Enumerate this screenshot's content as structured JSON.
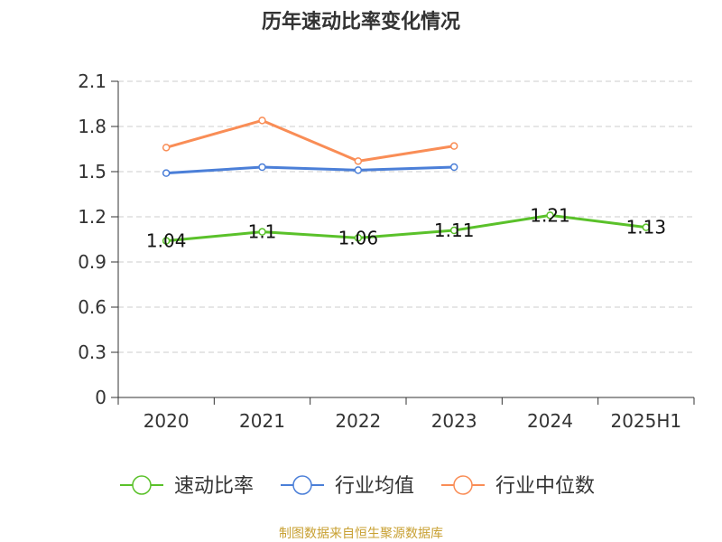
{
  "title": "历年速动比率变化情况",
  "source": "制图数据来自恒生聚源数据库",
  "chart_data": {
    "type": "line",
    "categories": [
      "2020",
      "2021",
      "2022",
      "2023",
      "2024",
      "2025H1"
    ],
    "ylim": [
      0,
      2.1
    ],
    "yticks": [
      "0",
      "0.3",
      "0.6",
      "0.9",
      "1.2",
      "1.5",
      "1.8",
      "2.1"
    ],
    "grid": true,
    "legend_position": "bottom",
    "series": [
      {
        "name": "速动比率",
        "color": "#5ac12a",
        "values": [
          1.04,
          1.1,
          1.06,
          1.11,
          1.21,
          1.13
        ],
        "labels": [
          "1.04",
          "1.1",
          "1.06",
          "1.11",
          "1.21",
          "1.13"
        ]
      },
      {
        "name": "行业均值",
        "color": "#4b7fd8",
        "values": [
          1.49,
          1.53,
          1.51,
          1.53,
          null,
          null
        ]
      },
      {
        "name": "行业中位数",
        "color": "#f98d56",
        "values": [
          1.66,
          1.84,
          1.57,
          1.67,
          null,
          null
        ]
      }
    ]
  }
}
